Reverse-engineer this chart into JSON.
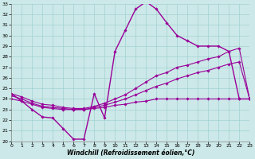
{
  "xlabel": "Windchill (Refroidissement éolien,°C)",
  "bg_color": "#cce8e8",
  "line_color": "#990099",
  "xlim": [
    0,
    23
  ],
  "ylim": [
    20,
    33
  ],
  "xticks": [
    0,
    1,
    2,
    3,
    4,
    5,
    6,
    7,
    8,
    9,
    10,
    11,
    12,
    13,
    14,
    15,
    16,
    17,
    18,
    19,
    20,
    21,
    22,
    23
  ],
  "yticks": [
    20,
    21,
    22,
    23,
    24,
    25,
    26,
    27,
    28,
    29,
    30,
    31,
    32,
    33
  ],
  "curves": [
    {
      "x": [
        0,
        1,
        2,
        3,
        4,
        5,
        6,
        7,
        8,
        9,
        10,
        11,
        12,
        13,
        14,
        15,
        16,
        17,
        18,
        19,
        20,
        21,
        22,
        23
      ],
      "y": [
        24.5,
        23.8,
        23.0,
        22.3,
        22.2,
        21.2,
        20.2,
        20.2,
        24.5,
        22.2,
        28.5,
        30.5,
        32.5,
        33.2,
        32.5,
        31.2,
        30.0,
        29.5,
        29.0,
        29.0,
        29.0,
        28.5,
        24.0,
        24.0
      ],
      "lw": 1.0
    },
    {
      "x": [
        0,
        1,
        2,
        3,
        4,
        5,
        6,
        7,
        8,
        9,
        10,
        11,
        12,
        13,
        14,
        15,
        16,
        17,
        18,
        19,
        20,
        21,
        22,
        23
      ],
      "y": [
        24.5,
        24.2,
        23.8,
        23.5,
        23.4,
        23.2,
        23.1,
        23.1,
        23.3,
        23.6,
        24.0,
        24.4,
        25.0,
        25.6,
        26.2,
        26.5,
        27.0,
        27.2,
        27.5,
        27.8,
        28.0,
        28.5,
        28.8,
        24.0
      ],
      "lw": 0.8
    },
    {
      "x": [
        0,
        1,
        2,
        3,
        4,
        5,
        6,
        7,
        8,
        9,
        10,
        11,
        12,
        13,
        14,
        15,
        16,
        17,
        18,
        19,
        20,
        21,
        22,
        23
      ],
      "y": [
        24.3,
        24.0,
        23.6,
        23.3,
        23.2,
        23.1,
        23.0,
        23.0,
        23.2,
        23.4,
        23.7,
        24.0,
        24.4,
        24.8,
        25.2,
        25.5,
        25.9,
        26.2,
        26.5,
        26.7,
        27.0,
        27.3,
        27.5,
        24.0
      ],
      "lw": 0.8
    },
    {
      "x": [
        0,
        1,
        2,
        3,
        4,
        5,
        6,
        7,
        8,
        9,
        10,
        11,
        12,
        13,
        14,
        15,
        16,
        17,
        18,
        19,
        20,
        21,
        22,
        23
      ],
      "y": [
        24.0,
        23.8,
        23.5,
        23.2,
        23.1,
        23.0,
        23.0,
        23.0,
        23.1,
        23.2,
        23.4,
        23.5,
        23.7,
        23.8,
        24.0,
        24.0,
        24.0,
        24.0,
        24.0,
        24.0,
        24.0,
        24.0,
        24.0,
        24.0
      ],
      "lw": 0.8
    }
  ]
}
